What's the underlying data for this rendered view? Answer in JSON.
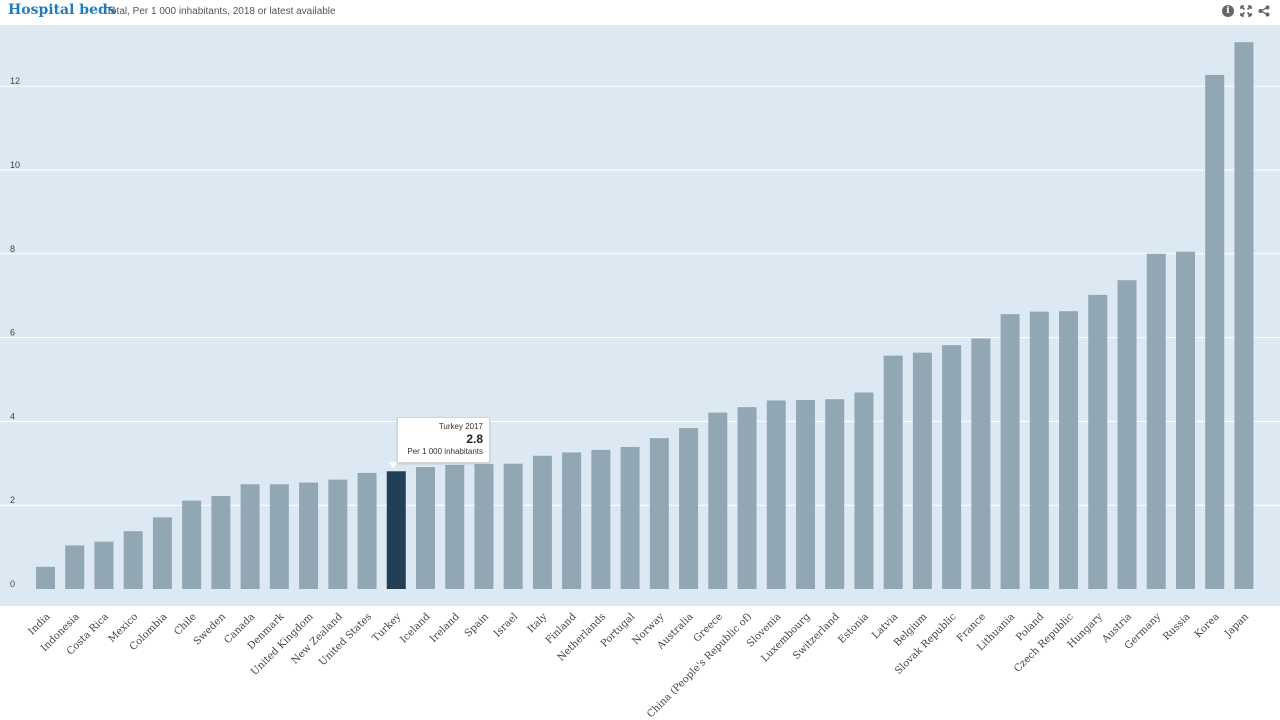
{
  "header": {
    "title": "Hospital beds",
    "subtitle": "Total, Per 1 000 inhabitants, 2018 or latest available",
    "tools": [
      {
        "name": "info-icon"
      },
      {
        "name": "fullscreen-icon"
      },
      {
        "name": "share-icon"
      }
    ]
  },
  "colors": {
    "bar": "#91a7b3",
    "highlight": "#233f55",
    "plot_background": "#dce9f2",
    "gridline": "#ffffff",
    "title": "#1f7cbf"
  },
  "tooltip": {
    "label": "Turkey 2017",
    "value": "2.8",
    "unit": "Per 1 000 inhabitants"
  },
  "chart_data": {
    "type": "bar",
    "title": "Hospital beds",
    "subtitle": "Total, Per 1 000 inhabitants, 2018 or latest available",
    "xlabel": "",
    "ylabel": "",
    "ylim": [
      0,
      13
    ],
    "yticks": [
      0,
      2,
      4,
      6,
      8,
      10,
      12
    ],
    "grid": true,
    "highlighted_category": "Turkey",
    "categories": [
      "India",
      "Indonesia",
      "Costa Rica",
      "Mexico",
      "Colombia",
      "Chile",
      "Sweden",
      "Canada",
      "Denmark",
      "United Kingdom",
      "New Zealand",
      "United States",
      "Turkey",
      "Iceland",
      "Ireland",
      "Spain",
      "Israel",
      "Italy",
      "Finland",
      "Netherlands",
      "Portugal",
      "Norway",
      "Australia",
      "Greece",
      "China (People's Republic of)",
      "Slovenia",
      "Luxembourg",
      "Switzerland",
      "Estonia",
      "Latvia",
      "Belgium",
      "Slovak Republic",
      "France",
      "Lithuania",
      "Poland",
      "Czech Republic",
      "Hungary",
      "Austria",
      "Germany",
      "Russia",
      "Korea",
      "Japan"
    ],
    "values": [
      0.53,
      1.04,
      1.13,
      1.38,
      1.71,
      2.11,
      2.22,
      2.5,
      2.5,
      2.54,
      2.61,
      2.77,
      2.81,
      2.91,
      2.96,
      2.98,
      2.99,
      3.18,
      3.26,
      3.32,
      3.39,
      3.6,
      3.84,
      4.21,
      4.34,
      4.5,
      4.51,
      4.53,
      4.69,
      5.57,
      5.64,
      5.82,
      5.98,
      6.56,
      6.62,
      6.63,
      7.02,
      7.37,
      8.0,
      8.05,
      12.27,
      13.05
    ]
  }
}
